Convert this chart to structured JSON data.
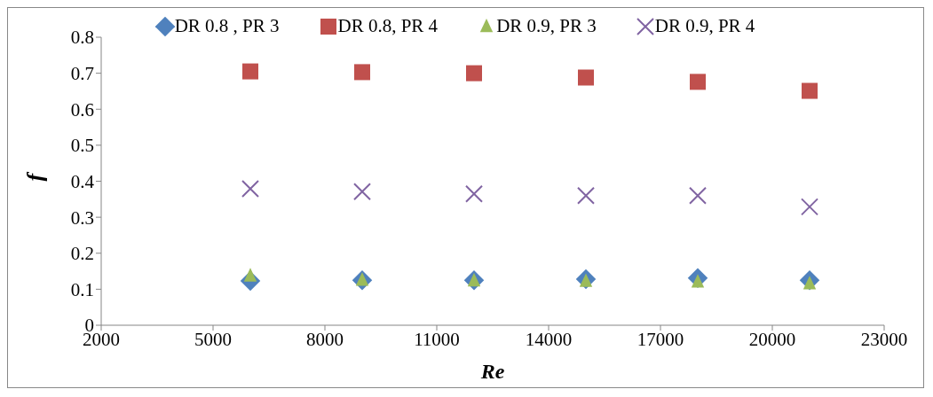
{
  "chart_data": {
    "type": "scatter",
    "xlabel": "Re",
    "ylabel": "f",
    "x": [
      6000,
      9000,
      12000,
      15000,
      18000,
      21000
    ],
    "xlim": [
      2000,
      23000
    ],
    "xticks": [
      2000,
      5000,
      8000,
      11000,
      14000,
      17000,
      20000,
      23000
    ],
    "ylim": [
      0,
      0.8
    ],
    "yticks": [
      0,
      0.1,
      0.2,
      0.3,
      0.4,
      0.5,
      0.6,
      0.7,
      0.8
    ],
    "grid": false,
    "legend": "top",
    "series": [
      {
        "name": "DR 0.8 , PR 3",
        "color": "#4f81bd",
        "marker": "diamond",
        "values": [
          0.123,
          0.125,
          0.125,
          0.128,
          0.131,
          0.125
        ]
      },
      {
        "name": "DR 0.8, PR 4",
        "color": "#c0504d",
        "marker": "square",
        "values": [
          0.705,
          0.703,
          0.7,
          0.688,
          0.676,
          0.651
        ]
      },
      {
        "name": "DR 0.9, PR 3",
        "color": "#9bbb59",
        "marker": "triangle",
        "values": [
          0.137,
          0.125,
          0.123,
          0.122,
          0.12,
          0.115
        ]
      },
      {
        "name": "DR 0.9, PR 4",
        "color": "#8064a2",
        "marker": "cross",
        "values": [
          0.379,
          0.371,
          0.365,
          0.36,
          0.36,
          0.329
        ]
      }
    ]
  }
}
